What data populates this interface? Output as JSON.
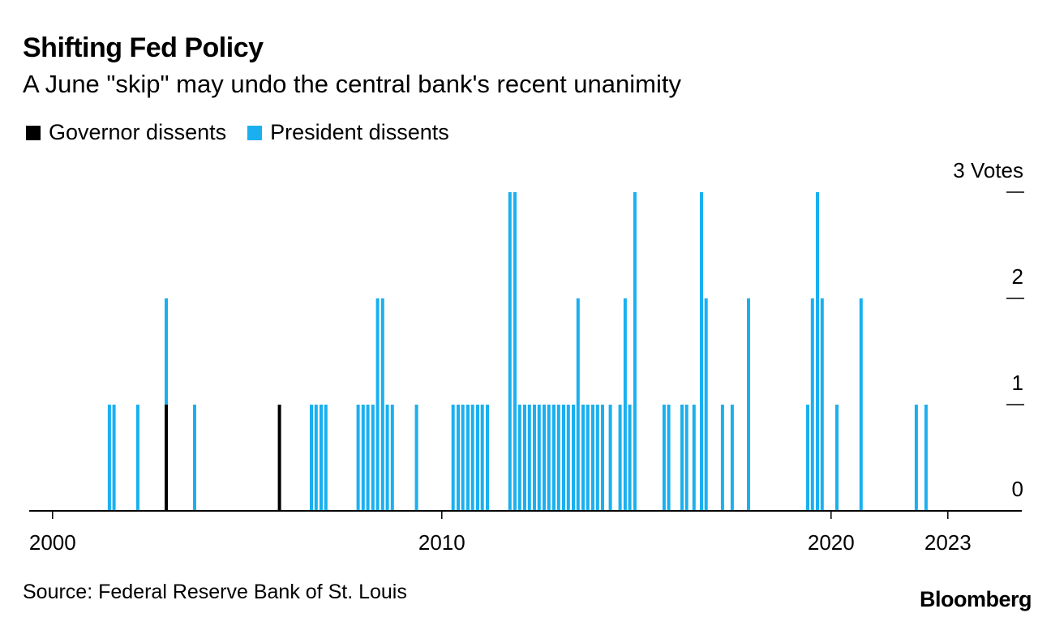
{
  "title": "Shifting Fed Policy",
  "subtitle": "A June \"skip\" may undo the central bank's recent unanimity",
  "legend": [
    {
      "label": "Governor dissents",
      "color": "#000000"
    },
    {
      "label": "President dissents",
      "color": "#1ab0f0"
    }
  ],
  "source": "Source: Federal Reserve Bank of St. Louis",
  "brand": "Bloomberg",
  "chart_data": {
    "type": "bar",
    "stacked": true,
    "xlabel": "",
    "ylabel": "",
    "xlim": [
      1999.4,
      2024.9
    ],
    "ylim": [
      0,
      3
    ],
    "x_ticks": [
      2000,
      2010,
      2020,
      2023
    ],
    "y_ticks": [
      {
        "value": 0,
        "label": "0"
      },
      {
        "value": 1,
        "label": "1"
      },
      {
        "value": 2,
        "label": "2"
      },
      {
        "value": 3,
        "label": "3 Votes"
      }
    ],
    "series": [
      {
        "name": "Governor dissents",
        "color": "#000000",
        "points": [
          [
            2002.92,
            1
          ],
          [
            2005.83,
            1
          ]
        ]
      },
      {
        "name": "President dissents",
        "color": "#1ab0f0",
        "points": [
          [
            2001.46,
            1
          ],
          [
            2001.58,
            1
          ],
          [
            2002.19,
            1
          ],
          [
            2002.92,
            1
          ],
          [
            2003.65,
            1
          ],
          [
            2006.65,
            1
          ],
          [
            2006.77,
            1
          ],
          [
            2006.9,
            1
          ],
          [
            2007.02,
            1
          ],
          [
            2007.85,
            1
          ],
          [
            2007.98,
            1
          ],
          [
            2008.1,
            1
          ],
          [
            2008.23,
            1
          ],
          [
            2008.35,
            2
          ],
          [
            2008.48,
            2
          ],
          [
            2008.6,
            1
          ],
          [
            2008.73,
            1
          ],
          [
            2009.35,
            1
          ],
          [
            2010.29,
            1
          ],
          [
            2010.42,
            1
          ],
          [
            2010.54,
            1
          ],
          [
            2010.67,
            1
          ],
          [
            2010.79,
            1
          ],
          [
            2010.92,
            1
          ],
          [
            2011.04,
            1
          ],
          [
            2011.17,
            1
          ],
          [
            2011.75,
            3
          ],
          [
            2011.88,
            3
          ],
          [
            2012.0,
            1
          ],
          [
            2012.13,
            1
          ],
          [
            2012.25,
            1
          ],
          [
            2012.38,
            1
          ],
          [
            2012.5,
            1
          ],
          [
            2012.63,
            1
          ],
          [
            2012.75,
            1
          ],
          [
            2012.88,
            1
          ],
          [
            2013.0,
            1
          ],
          [
            2013.13,
            1
          ],
          [
            2013.25,
            1
          ],
          [
            2013.38,
            1
          ],
          [
            2013.5,
            2
          ],
          [
            2013.63,
            1
          ],
          [
            2013.75,
            1
          ],
          [
            2013.88,
            1
          ],
          [
            2014.0,
            1
          ],
          [
            2014.13,
            1
          ],
          [
            2014.33,
            1
          ],
          [
            2014.58,
            1
          ],
          [
            2014.71,
            2
          ],
          [
            2014.83,
            1
          ],
          [
            2014.96,
            3
          ],
          [
            2015.71,
            1
          ],
          [
            2015.83,
            1
          ],
          [
            2016.17,
            1
          ],
          [
            2016.29,
            1
          ],
          [
            2016.48,
            1
          ],
          [
            2016.67,
            3
          ],
          [
            2016.79,
            2
          ],
          [
            2017.21,
            1
          ],
          [
            2017.46,
            1
          ],
          [
            2017.88,
            2
          ],
          [
            2019.4,
            1
          ],
          [
            2019.52,
            2
          ],
          [
            2019.65,
            3
          ],
          [
            2019.77,
            2
          ],
          [
            2020.15,
            1
          ],
          [
            2020.77,
            2
          ],
          [
            2022.19,
            1
          ],
          [
            2022.44,
            1
          ]
        ]
      }
    ]
  }
}
